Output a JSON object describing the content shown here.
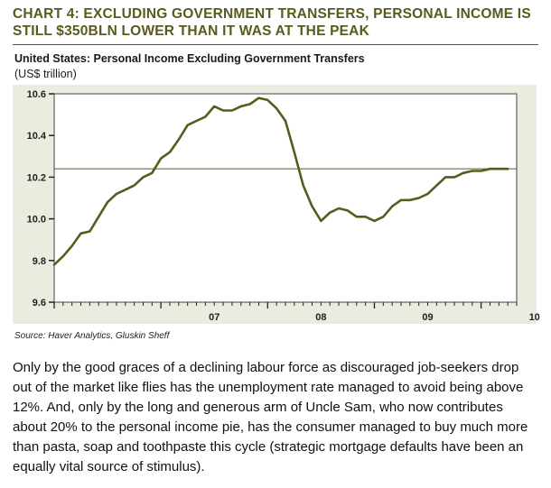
{
  "title": "CHART 4: EXCLUDING GOVERNMENT TRANSFERS, PERSONAL INCOME IS STILL $350BLN LOWER THAN IT WAS AT THE PEAK",
  "subtitle": "United States: Personal Income Excluding Government Transfers",
  "unit": "(US$ trillion)",
  "source": "Source: Haver Analytics, Gluskin Sheff",
  "body": "Only by the good graces of a declining labour force as discouraged job-seekers drop out of the market like flies has the unemployment rate managed to avoid being above 12%.  And, only by the long and generous arm of Uncle Sam, who now contributes about 20% to the personal income pie, has the consumer managed to buy much more than pasta, soap and toothpaste this cycle (strategic mortgage defaults have been an equally vital source of stimulus).",
  "colors": {
    "title": "#5b5a1e",
    "line": "#5b5a1e",
    "panel": "#ebebe0"
  },
  "chart_data": {
    "type": "line",
    "title": "United States: Personal Income Excluding Government Transfers",
    "ylabel": "(US$ trillion)",
    "xlabel": "",
    "ylim": [
      9.6,
      10.6
    ],
    "yticks": [
      "9.6",
      "9.8",
      "10.0",
      "10.2",
      "10.4",
      "10.6"
    ],
    "xticks": [
      "07",
      "08",
      "09",
      "10"
    ],
    "grid": false,
    "reference_line": 10.24,
    "series": [
      {
        "x": [
          "2006-01",
          "2006-02",
          "2006-03",
          "2006-04",
          "2006-05",
          "2006-06",
          "2006-07",
          "2006-08",
          "2006-09",
          "2006-10",
          "2006-11",
          "2006-12",
          "2007-01",
          "2007-02",
          "2007-03",
          "2007-04",
          "2007-05",
          "2007-06",
          "2007-07",
          "2007-08",
          "2007-09",
          "2007-10",
          "2007-11",
          "2007-12",
          "2008-01",
          "2008-02",
          "2008-03",
          "2008-04",
          "2008-05",
          "2008-06",
          "2008-07",
          "2008-08",
          "2008-09",
          "2008-10",
          "2008-11",
          "2008-12",
          "2009-01",
          "2009-02",
          "2009-03",
          "2009-04",
          "2009-05",
          "2009-06",
          "2009-07",
          "2009-08",
          "2009-09",
          "2009-10",
          "2009-11",
          "2009-12",
          "2010-01",
          "2010-02",
          "2010-03",
          "2010-04"
        ],
        "values": [
          9.78,
          9.82,
          9.87,
          9.93,
          9.94,
          10.01,
          10.08,
          10.12,
          10.14,
          10.16,
          10.2,
          10.22,
          10.29,
          10.32,
          10.38,
          10.45,
          10.47,
          10.49,
          10.54,
          10.52,
          10.52,
          10.54,
          10.55,
          10.58,
          10.57,
          10.53,
          10.47,
          10.32,
          10.16,
          10.06,
          9.99,
          10.03,
          10.05,
          10.04,
          10.01,
          10.01,
          9.99,
          10.01,
          10.06,
          10.09,
          10.09,
          10.1,
          10.12,
          10.16,
          10.2,
          10.2,
          10.22,
          10.23,
          10.23,
          10.24,
          10.24,
          10.24
        ]
      }
    ]
  }
}
